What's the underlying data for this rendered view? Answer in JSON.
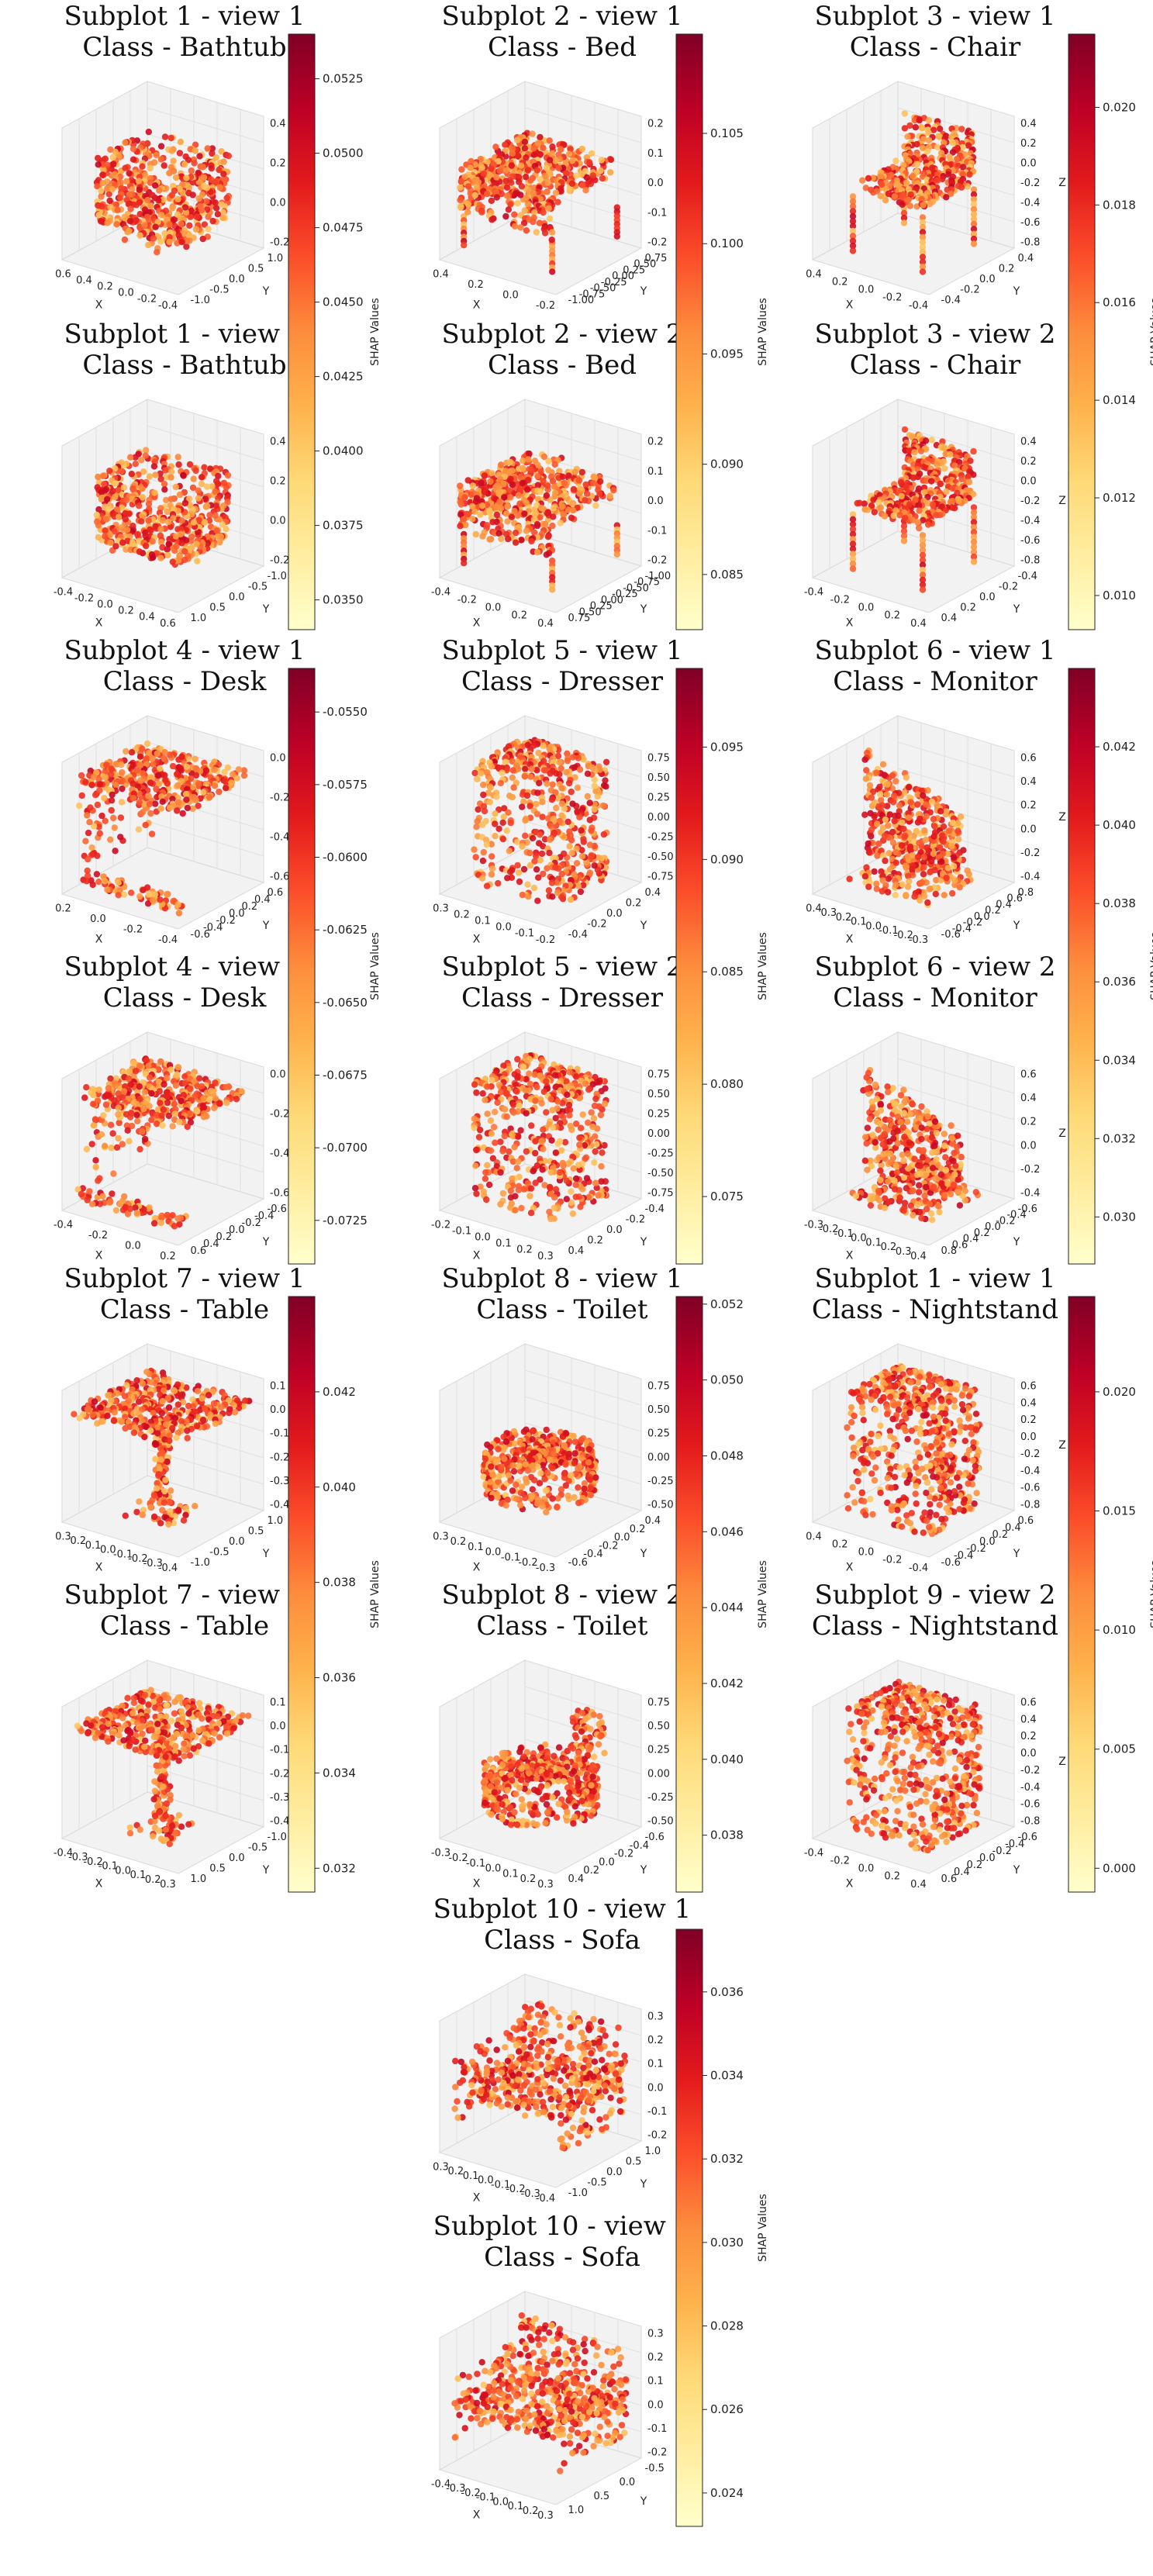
{
  "figure": {
    "colormap": [
      "#ffffcc",
      "#ffeda0",
      "#fed976",
      "#feb24c",
      "#fd8d3c",
      "#fc4e2a",
      "#e31a1c",
      "#bd0026",
      "#800026"
    ],
    "colorbar_label": "SHAP Values"
  },
  "chart_data": [
    {
      "type": "scatter",
      "title_line1": "Subplot 1 - view 1",
      "title_line2": "Class - Bathtub",
      "shape": "bathtub",
      "xlabel": "X",
      "ylabel": "Y",
      "zlabel": "Z",
      "x_ticks": [
        "0.6",
        "0.4",
        "0.2",
        "0.0",
        "-0.2",
        "-0.4"
      ],
      "y_ticks": [
        "-1.0",
        "-0.5",
        "0.0",
        "0.5",
        "1.0"
      ],
      "z_ticks": [
        "0.4",
        "0.2",
        "0.0",
        "-0.2"
      ]
    },
    {
      "type": "scatter",
      "title_line1": "Subplot 2 - view 1",
      "title_line2": "Class - Bed",
      "shape": "bed",
      "xlabel": "X",
      "ylabel": "Y",
      "zlabel": "Z",
      "x_ticks": [
        "0.4",
        "0.2",
        "0.0",
        "-0.2"
      ],
      "y_ticks": [
        "-1.00",
        "-0.75",
        "-0.50",
        "-0.25",
        "0.00",
        "0.25",
        "0.50",
        "0.75"
      ],
      "z_ticks": [
        "0.2",
        "0.1",
        "0.0",
        "-0.1",
        "-0.2"
      ]
    },
    {
      "type": "scatter",
      "title_line1": "Subplot 3 - view 1",
      "title_line2": "Class - Chair",
      "shape": "chair",
      "xlabel": "X",
      "ylabel": "Y",
      "zlabel": "Z",
      "x_ticks": [
        "0.4",
        "0.2",
        "0.0",
        "-0.2",
        "-0.4"
      ],
      "y_ticks": [
        "-0.4",
        "-0.2",
        "0.0",
        "0.2",
        "0.4"
      ],
      "z_ticks": [
        "0.4",
        "0.2",
        "0.0",
        "-0.2",
        "-0.4",
        "-0.6",
        "-0.8"
      ]
    },
    {
      "type": "scatter",
      "title_line1": "Subplot 1 - view 2",
      "title_line2": "Class - Bathtub",
      "shape": "bathtub2",
      "xlabel": "X",
      "ylabel": "Y",
      "zlabel": "Z",
      "x_ticks": [
        "-0.4",
        "-0.2",
        "0.0",
        "0.2",
        "0.4",
        "0.6"
      ],
      "y_ticks": [
        "1.0",
        "0.5",
        "0.0",
        "-0.5",
        "-1.0"
      ],
      "z_ticks": [
        "0.4",
        "0.2",
        "0.0",
        "-0.2"
      ]
    },
    {
      "type": "scatter",
      "title_line1": "Subplot 2 - view 2",
      "title_line2": "Class - Bed",
      "shape": "bed2",
      "xlabel": "X",
      "ylabel": "Y",
      "zlabel": "Z",
      "x_ticks": [
        "-0.4",
        "-0.2",
        "0.0",
        "0.2",
        "0.4"
      ],
      "y_ticks": [
        "0.75",
        "0.50",
        "0.25",
        "0.00",
        "-0.25",
        "-0.50",
        "-0.75",
        "-1.00"
      ],
      "z_ticks": [
        "0.2",
        "0.1",
        "0.0",
        "-0.1",
        "-0.2"
      ]
    },
    {
      "type": "scatter",
      "title_line1": "Subplot 3 - view 2",
      "title_line2": "Class - Chair",
      "shape": "chair2",
      "xlabel": "X",
      "ylabel": "Y",
      "zlabel": "Z",
      "x_ticks": [
        "-0.4",
        "-0.2",
        "0.0",
        "0.2",
        "0.4"
      ],
      "y_ticks": [
        "0.4",
        "0.2",
        "0.0",
        "-0.2",
        "-0.4"
      ],
      "z_ticks": [
        "0.4",
        "0.2",
        "0.0",
        "-0.2",
        "-0.4",
        "-0.6",
        "-0.8"
      ]
    },
    {
      "type": "scatter",
      "title_line1": "Subplot 4 - view 1",
      "title_line2": "Class - Desk",
      "shape": "desk",
      "xlabel": "X",
      "ylabel": "Y",
      "zlabel": "Z",
      "x_ticks": [
        "0.2",
        "0.0",
        "-0.2",
        "-0.4"
      ],
      "y_ticks": [
        "-0.6",
        "-0.4",
        "-0.2",
        "0.0",
        "0.2",
        "0.4",
        "0.6"
      ],
      "z_ticks": [
        "0.0",
        "-0.2",
        "-0.4",
        "-0.6"
      ]
    },
    {
      "type": "scatter",
      "title_line1": "Subplot 5 - view 1",
      "title_line2": "Class - Dresser",
      "shape": "dresser",
      "xlabel": "X",
      "ylabel": "Y",
      "zlabel": "Z",
      "x_ticks": [
        "0.3",
        "0.2",
        "0.1",
        "0.0",
        "-0.1",
        "-0.2"
      ],
      "y_ticks": [
        "-0.4",
        "-0.2",
        "0.0",
        "0.2",
        "0.4"
      ],
      "z_ticks": [
        "0.75",
        "0.50",
        "0.25",
        "0.00",
        "-0.25",
        "-0.50",
        "-0.75"
      ]
    },
    {
      "type": "scatter",
      "title_line1": "Subplot 6 - view 1",
      "title_line2": "Class - Monitor",
      "shape": "monitor",
      "xlabel": "X",
      "ylabel": "Y",
      "zlabel": "Z",
      "x_ticks": [
        "0.4",
        "0.3",
        "0.2",
        "0.1",
        "0.0",
        "-0.1",
        "-0.2",
        "-0.3"
      ],
      "y_ticks": [
        "-0.6",
        "-0.4",
        "-0.2",
        "0.0",
        "0.2",
        "0.4",
        "0.6",
        "0.8"
      ],
      "z_ticks": [
        "0.6",
        "0.4",
        "0.2",
        "0.0",
        "-0.2",
        "-0.4"
      ]
    },
    {
      "type": "scatter",
      "title_line1": "Subplot 4 - view 2",
      "title_line2": "Class - Desk",
      "shape": "desk2",
      "xlabel": "X",
      "ylabel": "Y",
      "zlabel": "Z",
      "x_ticks": [
        "-0.4",
        "-0.2",
        "0.0",
        "0.2"
      ],
      "y_ticks": [
        "0.6",
        "0.4",
        "0.2",
        "0.0",
        "-0.2",
        "-0.4",
        "-0.6"
      ],
      "z_ticks": [
        "0.0",
        "-0.2",
        "-0.4",
        "-0.6"
      ]
    },
    {
      "type": "scatter",
      "title_line1": "Subplot 5 - view 2",
      "title_line2": "Class - Dresser",
      "shape": "dresser2",
      "xlabel": "X",
      "ylabel": "Y",
      "zlabel": "Z",
      "x_ticks": [
        "-0.2",
        "-0.1",
        "0.0",
        "0.1",
        "0.2",
        "0.3"
      ],
      "y_ticks": [
        "0.4",
        "0.2",
        "0.0",
        "-0.2",
        "-0.4"
      ],
      "z_ticks": [
        "0.75",
        "0.50",
        "0.25",
        "0.00",
        "-0.25",
        "-0.50",
        "-0.75"
      ]
    },
    {
      "type": "scatter",
      "title_line1": "Subplot 6 - view 2",
      "title_line2": "Class - Monitor",
      "shape": "monitor2",
      "xlabel": "X",
      "ylabel": "Y",
      "zlabel": "Z",
      "x_ticks": [
        "-0.3",
        "-0.2",
        "-0.1",
        "0.0",
        "0.1",
        "0.2",
        "0.3",
        "0.4"
      ],
      "y_ticks": [
        "0.8",
        "0.6",
        "0.4",
        "0.2",
        "0.0",
        "-0.2",
        "-0.4",
        "-0.6"
      ],
      "z_ticks": [
        "0.6",
        "0.4",
        "0.2",
        "0.0",
        "-0.2",
        "-0.4"
      ]
    },
    {
      "type": "scatter",
      "title_line1": "Subplot 7 - view 1",
      "title_line2": "Class - Table",
      "shape": "table",
      "xlabel": "X",
      "ylabel": "Y",
      "zlabel": "Z",
      "x_ticks": [
        "0.3",
        "0.2",
        "0.1",
        "0.0",
        "-0.1",
        "-0.2",
        "-0.3",
        "-0.4"
      ],
      "y_ticks": [
        "-1.0",
        "-0.5",
        "0.0",
        "0.5",
        "1.0"
      ],
      "z_ticks": [
        "0.1",
        "0.0",
        "-0.1",
        "-0.2",
        "-0.3",
        "-0.4"
      ]
    },
    {
      "type": "scatter",
      "title_line1": "Subplot 8 - view 1",
      "title_line2": "Class - Toilet",
      "shape": "toilet",
      "xlabel": "X",
      "ylabel": "Y",
      "zlabel": "Z",
      "x_ticks": [
        "0.3",
        "0.2",
        "0.1",
        "0.0",
        "-0.1",
        "-0.2",
        "-0.3"
      ],
      "y_ticks": [
        "-0.6",
        "-0.4",
        "-0.2",
        "0.0",
        "0.2",
        "0.4"
      ],
      "z_ticks": [
        "0.75",
        "0.50",
        "0.25",
        "0.00",
        "-0.25",
        "-0.50"
      ]
    },
    {
      "type": "scatter",
      "title_line1": "Subplot 1 - view 1",
      "title_line2": "Class - Nightstand",
      "shape": "nightstand",
      "xlabel": "X",
      "ylabel": "Y",
      "zlabel": "Z",
      "x_ticks": [
        "0.4",
        "0.2",
        "0.0",
        "-0.2",
        "-0.4"
      ],
      "y_ticks": [
        "-0.6",
        "-0.4",
        "-0.2",
        "0.0",
        "0.2",
        "0.4",
        "0.6"
      ],
      "z_ticks": [
        "0.6",
        "0.4",
        "0.2",
        "0.0",
        "-0.2",
        "-0.4",
        "-0.6",
        "-0.8"
      ]
    },
    {
      "type": "scatter",
      "title_line1": "Subplot 7 - view 2",
      "title_line2": "Class - Table",
      "shape": "table2",
      "xlabel": "X",
      "ylabel": "Y",
      "zlabel": "Z",
      "x_ticks": [
        "-0.4",
        "-0.3",
        "-0.2",
        "-0.1",
        "0.0",
        "0.1",
        "0.2",
        "0.3"
      ],
      "y_ticks": [
        "1.0",
        "0.5",
        "0.0",
        "-0.5",
        "-1.0"
      ],
      "z_ticks": [
        "0.1",
        "0.0",
        "-0.1",
        "-0.2",
        "-0.3",
        "-0.4"
      ]
    },
    {
      "type": "scatter",
      "title_line1": "Subplot 8 - view 2",
      "title_line2": "Class - Toilet",
      "shape": "toilet2",
      "xlabel": "X",
      "ylabel": "Y",
      "zlabel": "Z",
      "x_ticks": [
        "-0.3",
        "-0.2",
        "-0.1",
        "0.0",
        "0.1",
        "0.2",
        "0.3"
      ],
      "y_ticks": [
        "0.4",
        "0.2",
        "0.0",
        "-0.2",
        "-0.4",
        "-0.6"
      ],
      "z_ticks": [
        "0.75",
        "0.50",
        "0.25",
        "0.00",
        "-0.25",
        "-0.50"
      ]
    },
    {
      "type": "scatter",
      "title_line1": "Subplot 9 - view 2",
      "title_line2": "Class - Nightstand",
      "shape": "nightstand2",
      "xlabel": "X",
      "ylabel": "Y",
      "zlabel": "Z",
      "x_ticks": [
        "-0.4",
        "-0.2",
        "0.0",
        "0.2",
        "0.4"
      ],
      "y_ticks": [
        "0.6",
        "0.4",
        "0.2",
        "0.0",
        "-0.2",
        "-0.4",
        "-0.6"
      ],
      "z_ticks": [
        "0.6",
        "0.4",
        "0.2",
        "0.0",
        "-0.2",
        "-0.4",
        "-0.6",
        "-0.8"
      ]
    },
    {
      "type": "scatter",
      "title_line1": "Subplot 10 - view 1",
      "title_line2": "Class - Sofa",
      "shape": "sofa",
      "xlabel": "X",
      "ylabel": "Y",
      "zlabel": "Z",
      "x_ticks": [
        "0.3",
        "0.2",
        "0.1",
        "0.0",
        "-0.1",
        "-0.2",
        "-0.3",
        "-0.4"
      ],
      "y_ticks": [
        "-1.0",
        "-0.5",
        "0.0",
        "0.5",
        "1.0"
      ],
      "z_ticks": [
        "0.3",
        "0.2",
        "0.1",
        "0.0",
        "-0.1",
        "-0.2"
      ]
    },
    {
      "type": "scatter",
      "title_line1": "Subplot 10 - view 2",
      "title_line2": "Class - Sofa",
      "shape": "sofa2",
      "xlabel": "X",
      "ylabel": "Y",
      "zlabel": "Z",
      "x_ticks": [
        "-0.4",
        "-0.3",
        "-0.2",
        "-0.1",
        "0.0",
        "0.1",
        "0.2",
        "0.3"
      ],
      "y_ticks": [
        "1.0",
        "0.5",
        "0.0",
        "-0.5"
      ],
      "z_ticks": [
        "0.3",
        "0.2",
        "0.1",
        "0.0",
        "-0.1",
        "-0.2"
      ]
    }
  ],
  "colorbars": [
    {
      "group": "bathtub-bed-chair-row1",
      "min": 0.034,
      "max": 0.054,
      "ticks": [
        "0.0525",
        "0.0500",
        "0.0475",
        "0.0450",
        "0.0425",
        "0.0400",
        "0.0375",
        "0.0350"
      ],
      "tick_values": [
        0.0525,
        0.05,
        0.0475,
        0.045,
        0.0425,
        0.04,
        0.0375,
        0.035
      ],
      "label": "SHAP Values"
    },
    {
      "group": "bed",
      "min": 0.0825,
      "max": 0.1095,
      "ticks": [
        "0.105",
        "0.100",
        "0.095",
        "0.090",
        "0.085"
      ],
      "tick_values": [
        0.105,
        0.1,
        0.095,
        0.09,
        0.085
      ],
      "label": "SHAP Values"
    },
    {
      "group": "chair",
      "min": 0.0093,
      "max": 0.0215,
      "ticks": [
        "0.020",
        "0.018",
        "0.016",
        "0.014",
        "0.012",
        "0.010"
      ],
      "tick_values": [
        0.02,
        0.018,
        0.016,
        0.014,
        0.012,
        0.01
      ],
      "label": "SHAP Values"
    },
    {
      "group": "desk",
      "min": -0.074,
      "max": -0.0535,
      "ticks": [
        "-0.0550",
        "-0.0575",
        "-0.0600",
        "-0.0625",
        "-0.0650",
        "-0.0675",
        "-0.0700",
        "-0.0725"
      ],
      "tick_values": [
        -0.055,
        -0.0575,
        -0.06,
        -0.0625,
        -0.065,
        -0.0675,
        -0.07,
        -0.0725
      ],
      "label": "SHAP Values"
    },
    {
      "group": "dresser",
      "min": 0.072,
      "max": 0.0985,
      "ticks": [
        "0.095",
        "0.090",
        "0.085",
        "0.080",
        "0.075"
      ],
      "tick_values": [
        0.095,
        0.09,
        0.085,
        0.08,
        0.075
      ],
      "label": "SHAP Values"
    },
    {
      "group": "monitor",
      "min": 0.0288,
      "max": 0.044,
      "ticks": [
        "0.042",
        "0.040",
        "0.038",
        "0.036",
        "0.034",
        "0.032",
        "0.030"
      ],
      "tick_values": [
        0.042,
        0.04,
        0.038,
        0.036,
        0.034,
        0.032,
        0.03
      ],
      "label": "SHAP Values"
    },
    {
      "group": "table",
      "min": 0.0315,
      "max": 0.044,
      "ticks": [
        "0.042",
        "0.040",
        "0.038",
        "0.036",
        "0.034",
        "0.032"
      ],
      "tick_values": [
        0.042,
        0.04,
        0.038,
        0.036,
        0.034,
        0.032
      ],
      "label": "SHAP Values"
    },
    {
      "group": "toilet",
      "min": 0.0365,
      "max": 0.0522,
      "ticks": [
        "0.052",
        "0.050",
        "0.048",
        "0.046",
        "0.044",
        "0.042",
        "0.040",
        "0.038"
      ],
      "tick_values": [
        0.052,
        0.05,
        0.048,
        0.046,
        0.044,
        0.042,
        0.04,
        0.038
      ],
      "label": "SHAP Values"
    },
    {
      "group": "nightstand",
      "min": -0.001,
      "max": 0.024,
      "ticks": [
        "0.020",
        "0.015",
        "0.010",
        "0.005",
        "0.000"
      ],
      "tick_values": [
        0.02,
        0.015,
        0.01,
        0.005,
        0.0
      ],
      "label": "SHAP Values"
    },
    {
      "group": "sofa",
      "min": 0.0232,
      "max": 0.0375,
      "ticks": [
        "0.036",
        "0.034",
        "0.032",
        "0.030",
        "0.028",
        "0.026",
        "0.024"
      ],
      "tick_values": [
        0.036,
        0.034,
        0.032,
        0.03,
        0.028,
        0.026,
        0.024
      ],
      "label": "SHAP Values"
    }
  ]
}
